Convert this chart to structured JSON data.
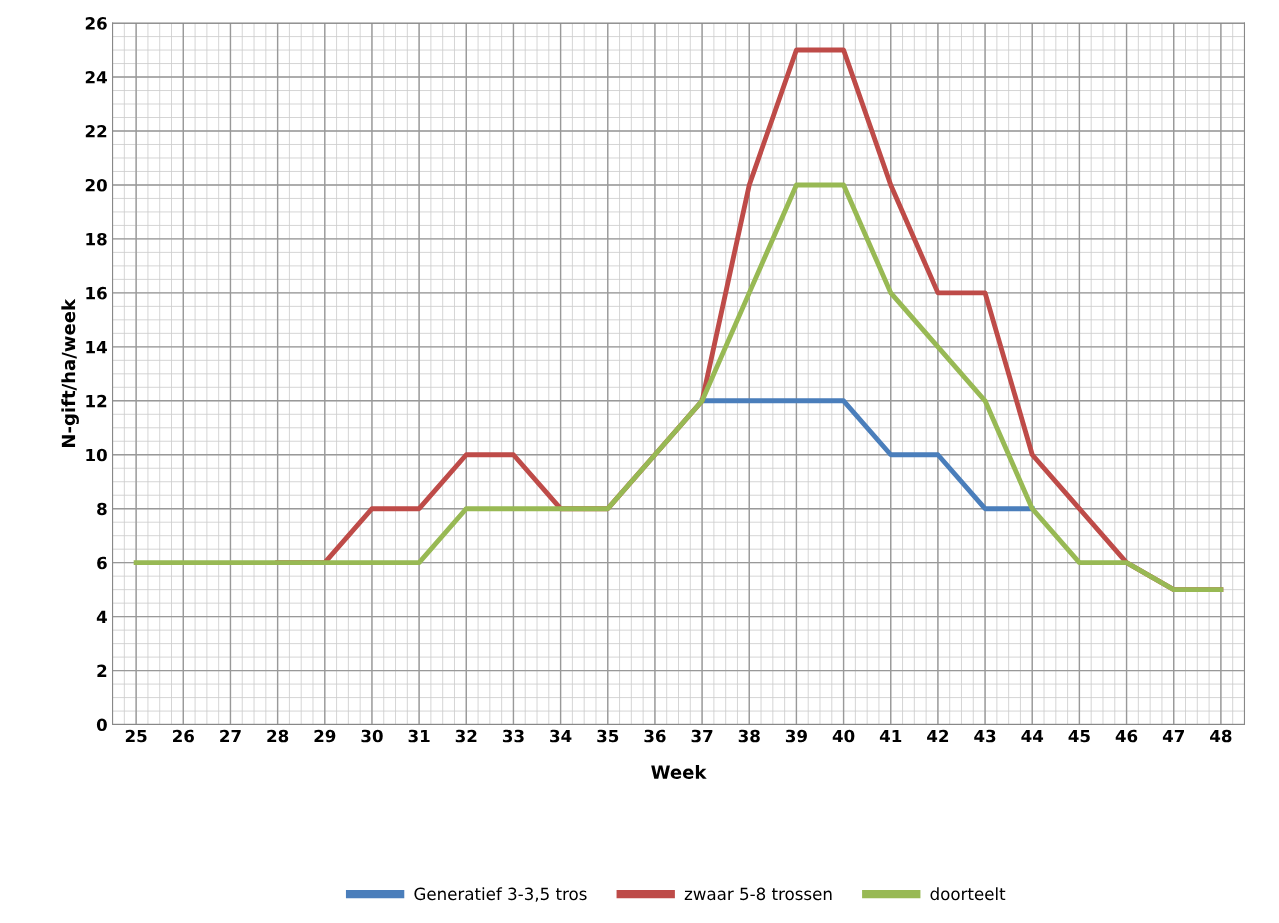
{
  "chart_data": {
    "type": "line",
    "xlabel": "Week",
    "ylabel": "N-gift/ha/week",
    "categories": [
      "25",
      "26",
      "27",
      "28",
      "29",
      "30",
      "31",
      "32",
      "33",
      "34",
      "35",
      "36",
      "37",
      "38",
      "39",
      "40",
      "41",
      "42",
      "43",
      "44",
      "45",
      "46",
      "47",
      "48"
    ],
    "series": [
      {
        "name": "Generatief 3-3,5 tros",
        "color": "#4a7ebb",
        "values": [
          null,
          null,
          null,
          null,
          null,
          null,
          null,
          null,
          null,
          null,
          null,
          null,
          12,
          12,
          12,
          12,
          10,
          10,
          8,
          8,
          null,
          null,
          null,
          null
        ]
      },
      {
        "name": "zwaar 5-8 trossen",
        "color": "#be4b48",
        "values": [
          null,
          null,
          null,
          6,
          6,
          8,
          8,
          10,
          10,
          8,
          8,
          10,
          12,
          20,
          25,
          25,
          20,
          16,
          16,
          10,
          8,
          6,
          5,
          5
        ]
      },
      {
        "name": "doorteelt",
        "color": "#98b954",
        "values": [
          6,
          6,
          6,
          6,
          6,
          6,
          6,
          8,
          8,
          8,
          8,
          10,
          12,
          16,
          20,
          20,
          16,
          14,
          12,
          8,
          6,
          6,
          5,
          5
        ]
      }
    ],
    "ylim": [
      0,
      26
    ],
    "yticks": [
      0,
      2,
      4,
      6,
      8,
      10,
      12,
      14,
      16,
      18,
      20,
      22,
      24,
      26
    ],
    "grid": true,
    "legend": "bottom",
    "marker": "none",
    "line_style": "solid"
  }
}
